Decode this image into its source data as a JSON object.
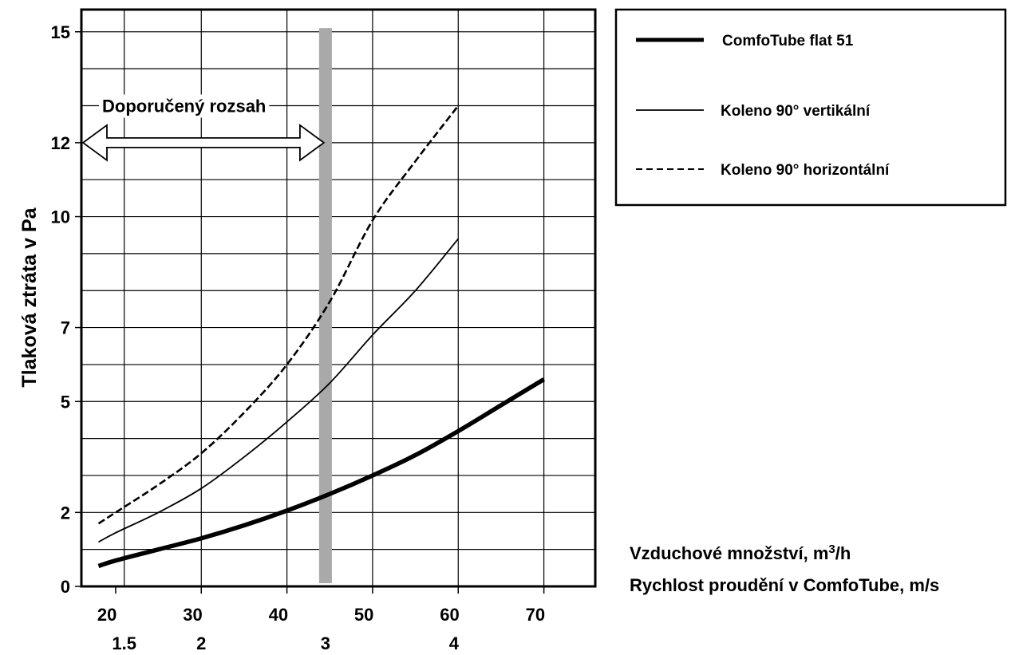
{
  "chart_data": {
    "type": "line",
    "ylabel": "Tlaková ztráta v Pa",
    "xlabel_lines": [
      "Vzduchové množství, m³/h",
      "Rychlost proudění v ComfoTube, m/s"
    ],
    "xlabel_line1_main": "Vzduchové množství, m",
    "xlabel_line1_sup": "3",
    "xlabel_line1_tail": "/h",
    "xlabel_line2": "Rychlost proudění v ComfoTube, m/s",
    "x_ticks": [
      "20",
      "30",
      "40",
      "50",
      "60",
      "70"
    ],
    "x_tick_values": [
      20,
      30,
      40,
      50,
      60,
      70
    ],
    "x2_ticks": [
      "1.5",
      "2",
      "3",
      "4"
    ],
    "x2_tick_positions": [
      21,
      30,
      44.5,
      59.5
    ],
    "y_ticks": [
      "0",
      "2",
      "5",
      "7",
      "10",
      "12",
      "15"
    ],
    "y_tick_values": [
      0,
      2,
      5,
      7,
      10,
      12,
      15
    ],
    "xlim": [
      16,
      76
    ],
    "ylim": [
      0,
      15.6
    ],
    "grid": true,
    "recommended_range": {
      "label": "Doporučený rozsah",
      "x_from": 16,
      "x_to": 44.5,
      "y": 12,
      "bar_x": 44.5
    },
    "legend_position": "right",
    "series": [
      {
        "name": "ComfoTube flat 51",
        "style": "thick-solid",
        "x": [
          18,
          20,
          25,
          30,
          35,
          40,
          45,
          50,
          55,
          60,
          65,
          70
        ],
        "y": [
          0.55,
          0.7,
          1.0,
          1.3,
          1.65,
          2.05,
          2.5,
          3.0,
          3.55,
          4.2,
          4.9,
          5.6
        ]
      },
      {
        "name": "Koleno 90° vertikální",
        "style": "thin-solid",
        "x": [
          18,
          20,
          25,
          30,
          35,
          40,
          45,
          50,
          55,
          60
        ],
        "y": [
          1.2,
          1.45,
          2.0,
          2.65,
          3.5,
          4.45,
          5.5,
          6.8,
          8.0,
          9.4
        ]
      },
      {
        "name": "Koleno 90° horizontální",
        "style": "dashed",
        "x": [
          18,
          20,
          25,
          30,
          35,
          40,
          45,
          50,
          55,
          60
        ],
        "y": [
          1.7,
          2.0,
          2.75,
          3.6,
          4.7,
          6.0,
          7.7,
          9.9,
          11.5,
          13.0
        ]
      }
    ]
  }
}
